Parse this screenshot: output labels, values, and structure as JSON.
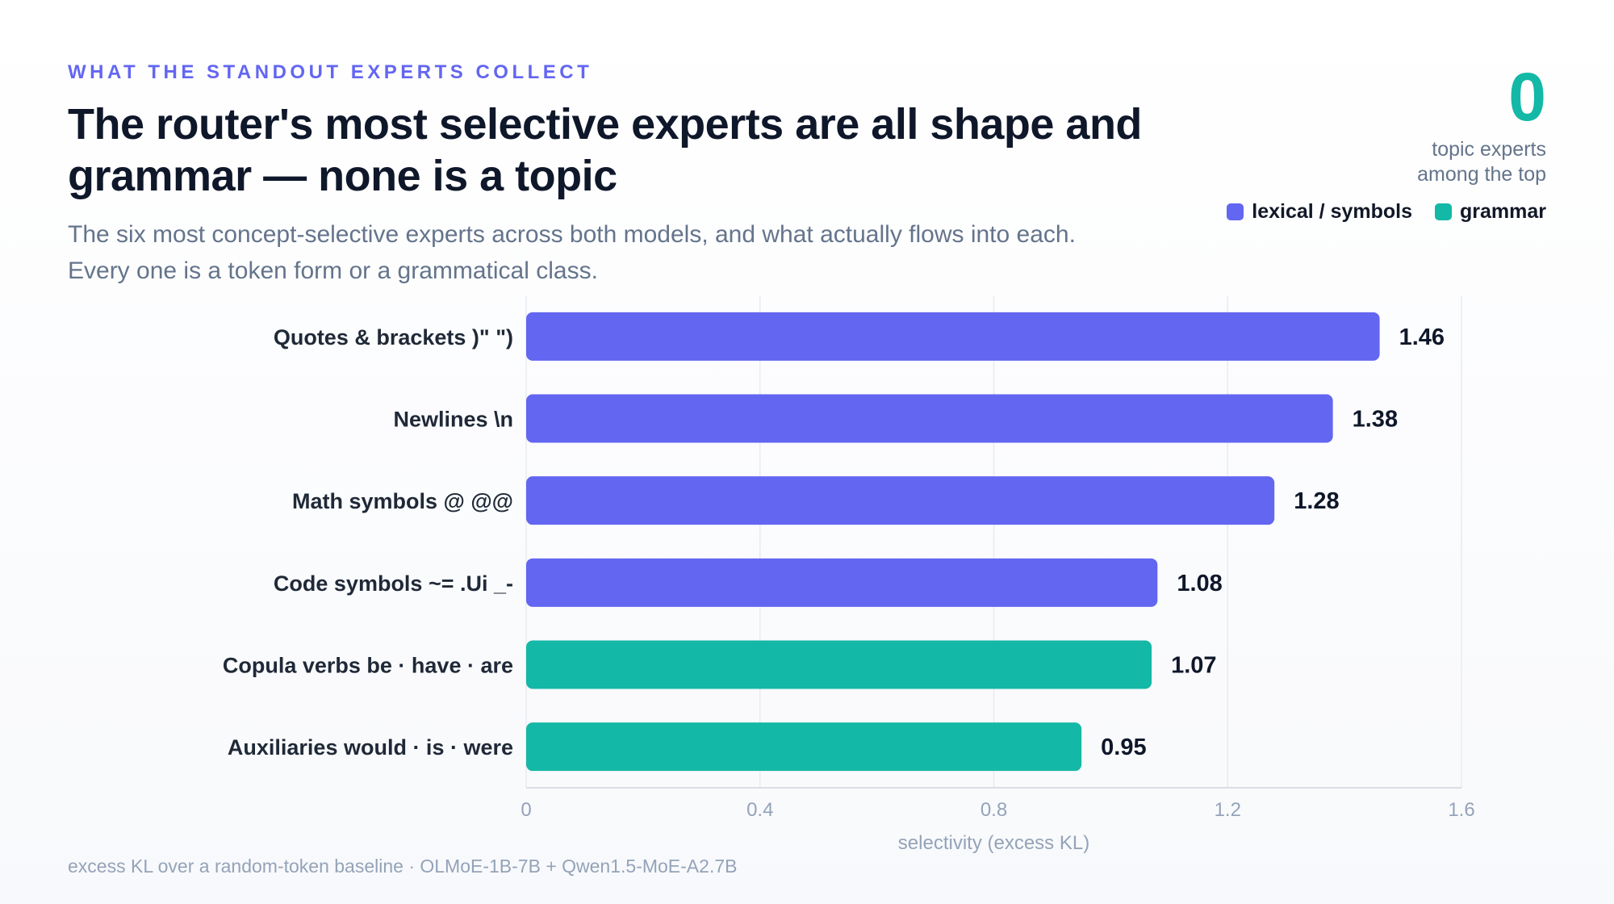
{
  "eyebrow": "WHAT THE STANDOUT EXPERTS COLLECT",
  "title_line1": "The router's most selective experts are all shape and",
  "title_line2": "grammar — none is a topic",
  "subtitle_line1": "The six most concept-selective experts across both models, and what actually flows into each.",
  "subtitle_line2": "Every one is a token form or a grammatical class.",
  "stat": {
    "value": "0",
    "label_line1": "topic experts",
    "label_line2": "among the top"
  },
  "legend": [
    {
      "label": "lexical / symbols",
      "color": "#6366f1"
    },
    {
      "label": "grammar",
      "color": "#14b8a6"
    }
  ],
  "footer": "excess KL over a random-token baseline · OLMoE-1B-7B + Qwen1.5-MoE-A2.7B",
  "chart_data": {
    "type": "bar",
    "orientation": "horizontal",
    "categories": [
      "Quotes & brackets )\" \")",
      "Newlines \\n",
      "Math symbols @ @@",
      "Code symbols ~= .Ui _-",
      "Copula verbs be · have · are",
      "Auxiliaries would · is · were"
    ],
    "values": [
      1.46,
      1.38,
      1.28,
      1.08,
      1.07,
      0.95
    ],
    "value_labels": [
      "1.46",
      "1.38",
      "1.28",
      "1.08",
      "1.07",
      "0.95"
    ],
    "groups": [
      "lexical / symbols",
      "lexical / symbols",
      "lexical / symbols",
      "lexical / symbols",
      "grammar",
      "grammar"
    ],
    "colors": [
      "#6366f1",
      "#6366f1",
      "#6366f1",
      "#6366f1",
      "#14b8a6",
      "#14b8a6"
    ],
    "xlabel": "selectivity (excess KL)",
    "xlim": [
      0,
      1.6
    ],
    "xticks": [
      0,
      0.4,
      0.8,
      1.2,
      1.6
    ],
    "xtick_labels": [
      "0",
      "0.4",
      "0.8",
      "1.2",
      "1.6"
    ],
    "grid": true
  }
}
